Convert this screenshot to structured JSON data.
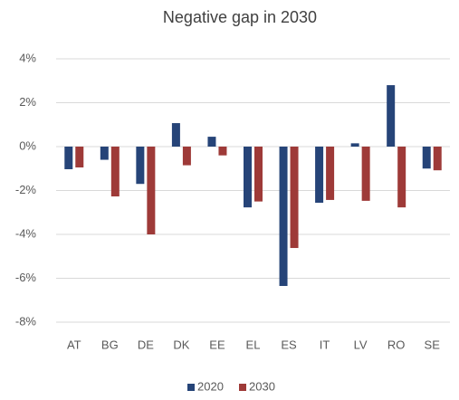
{
  "chart_data": {
    "type": "bar",
    "title": "Negative gap in 2030",
    "categories": [
      "AT",
      "BG",
      "DE",
      "DK",
      "EE",
      "EL",
      "ES",
      "IT",
      "LV",
      "RO",
      "SE"
    ],
    "series": [
      {
        "name": "2020",
        "color": "#264478",
        "values": [
          -1.03,
          -0.6,
          -1.7,
          1.07,
          0.45,
          -2.77,
          -6.35,
          -2.56,
          0.15,
          2.8,
          -1.0
        ]
      },
      {
        "name": "2030",
        "color": "#9e3a38",
        "values": [
          -0.95,
          -2.27,
          -4.0,
          -0.85,
          -0.4,
          -2.5,
          -4.62,
          -2.43,
          -2.47,
          -2.77,
          -1.08
        ]
      }
    ],
    "ylim": [
      -8,
      4
    ],
    "yticks": [
      {
        "value": -8,
        "label": "-8%"
      },
      {
        "value": -6,
        "label": "-6%"
      },
      {
        "value": -4,
        "label": "-4%"
      },
      {
        "value": -2,
        "label": "-2%"
      },
      {
        "value": 0,
        "label": "0%"
      },
      {
        "value": 2,
        "label": "2%"
      },
      {
        "value": 4,
        "label": "4%"
      }
    ],
    "grid": true,
    "legend": "bottom"
  }
}
